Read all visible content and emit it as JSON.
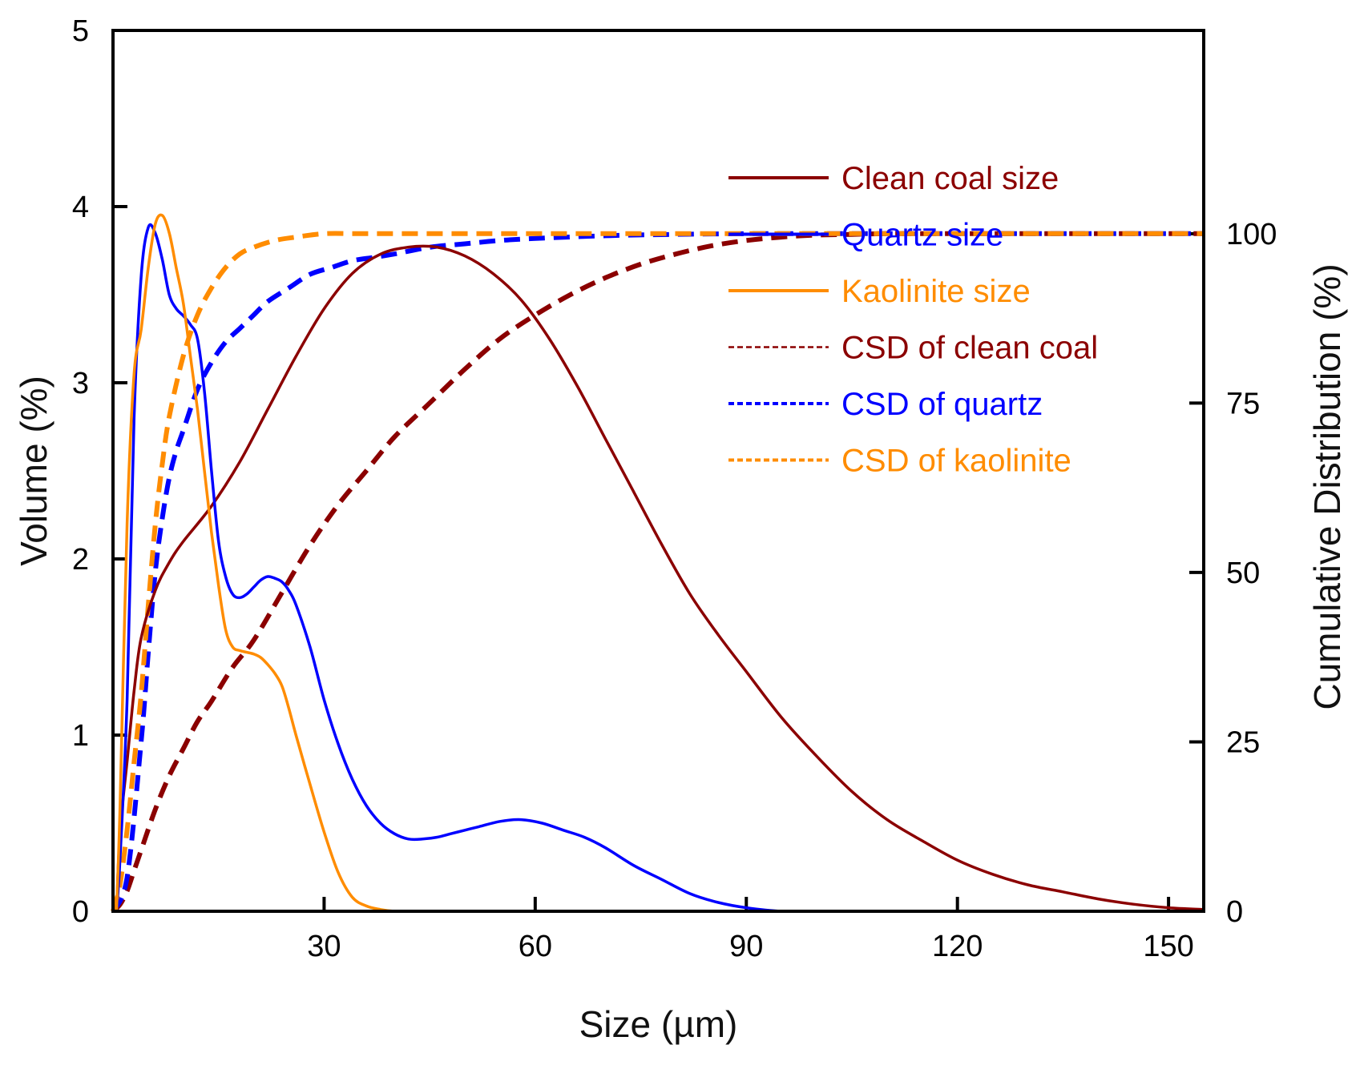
{
  "chart_data": {
    "type": "line",
    "title": "",
    "xlabel": "Size (µm)",
    "ylabel": "Volume (%)",
    "y2label": "Cumulative Distribution (%)",
    "xlim": [
      0,
      155
    ],
    "ylim": [
      0,
      5
    ],
    "y2lim": [
      0,
      130
    ],
    "grid": false,
    "legend_position": "upper-right",
    "xticks": [
      30,
      60,
      90,
      120,
      150
    ],
    "yticks": [
      0,
      1,
      2,
      3,
      4,
      5
    ],
    "y2ticks": [
      0,
      25,
      50,
      75,
      100
    ],
    "series": [
      {
        "name": "Clean coal size",
        "axis": "left",
        "style": "solid",
        "color": "#8B0000",
        "x": [
          0.5,
          1,
          2,
          3,
          4,
          6,
          8,
          10,
          14,
          18,
          22,
          26,
          30,
          34,
          38,
          42,
          46,
          50,
          54,
          58,
          62,
          66,
          70,
          74,
          78,
          82,
          86,
          90,
          95,
          100,
          105,
          110,
          115,
          120,
          125,
          130,
          135,
          140,
          145,
          150,
          155
        ],
        "values": [
          0,
          0.45,
          0.85,
          1.25,
          1.55,
          1.82,
          1.98,
          2.1,
          2.3,
          2.55,
          2.85,
          3.15,
          3.42,
          3.62,
          3.73,
          3.77,
          3.77,
          3.72,
          3.62,
          3.47,
          3.25,
          2.98,
          2.68,
          2.38,
          2.08,
          1.8,
          1.57,
          1.36,
          1.1,
          0.88,
          0.68,
          0.52,
          0.4,
          0.29,
          0.21,
          0.15,
          0.11,
          0.07,
          0.04,
          0.02,
          0.01
        ]
      },
      {
        "name": "Quartz size",
        "axis": "left",
        "style": "solid",
        "color": "#0000FF",
        "x": [
          0.5,
          1,
          2,
          3,
          4,
          5,
          6,
          7,
          8,
          9,
          10,
          11,
          12,
          13,
          14,
          15,
          16,
          17,
          18,
          19,
          20,
          21,
          22,
          23,
          24,
          25,
          26,
          28,
          30,
          32,
          34,
          36,
          38,
          40,
          42,
          44,
          46,
          48,
          50,
          52,
          55,
          58,
          61,
          64,
          67,
          70,
          74,
          78,
          82,
          86,
          90,
          95,
          100,
          105
        ],
        "values": [
          0,
          0.3,
          1.2,
          2.8,
          3.6,
          3.88,
          3.85,
          3.7,
          3.5,
          3.42,
          3.38,
          3.33,
          3.25,
          2.95,
          2.5,
          2.1,
          1.9,
          1.8,
          1.78,
          1.8,
          1.84,
          1.88,
          1.9,
          1.89,
          1.87,
          1.82,
          1.74,
          1.5,
          1.2,
          0.95,
          0.75,
          0.6,
          0.5,
          0.44,
          0.41,
          0.41,
          0.42,
          0.44,
          0.46,
          0.48,
          0.51,
          0.52,
          0.5,
          0.46,
          0.42,
          0.36,
          0.26,
          0.18,
          0.1,
          0.05,
          0.02,
          0.0,
          0.0,
          0.0
        ]
      },
      {
        "name": "Kaolinite size",
        "axis": "left",
        "style": "solid",
        "color": "#FF8C00",
        "x": [
          0.5,
          1,
          2,
          3,
          4,
          5,
          6,
          7,
          8,
          9,
          10,
          11,
          12,
          13,
          14,
          15,
          16,
          17,
          18,
          19,
          20,
          21,
          22,
          23,
          24,
          25,
          26,
          28,
          30,
          32,
          34,
          36,
          38,
          40,
          42,
          44
        ],
        "values": [
          0,
          0.6,
          2.2,
          3.05,
          3.3,
          3.65,
          3.9,
          3.95,
          3.85,
          3.65,
          3.45,
          3.15,
          2.85,
          2.5,
          2.15,
          1.85,
          1.6,
          1.5,
          1.48,
          1.47,
          1.46,
          1.44,
          1.4,
          1.35,
          1.28,
          1.15,
          1.0,
          0.72,
          0.45,
          0.22,
          0.08,
          0.03,
          0.01,
          0.0,
          0.0,
          0.0
        ]
      },
      {
        "name": "CSD of clean coal",
        "axis": "right",
        "style": "dashed",
        "color": "#8B0000",
        "x": [
          0,
          1,
          2,
          3,
          4,
          6,
          8,
          10,
          12,
          14,
          17,
          20,
          24,
          28,
          32,
          36,
          40,
          45,
          50,
          55,
          60,
          65,
          70,
          75,
          80,
          85,
          90,
          95,
          100,
          105,
          110,
          115,
          120,
          130,
          140,
          155
        ],
        "values": [
          0,
          1,
          3,
          6,
          9,
          15,
          20,
          24,
          28,
          31,
          36,
          40,
          47,
          54,
          60,
          65,
          70,
          75,
          80,
          84.5,
          88,
          91,
          93.5,
          95.5,
          97,
          98.2,
          99,
          99.5,
          99.8,
          99.9,
          100,
          100,
          100,
          100,
          100,
          100
        ]
      },
      {
        "name": "CSD of quartz",
        "axis": "right",
        "style": "dashed",
        "color": "#0000FF",
        "x": [
          0,
          2,
          4,
          5,
          6,
          7,
          8,
          9,
          10,
          12,
          14,
          16,
          18,
          20,
          22,
          25,
          28,
          31,
          34,
          37,
          40,
          45,
          50,
          55,
          60,
          70,
          80,
          90,
          100,
          120,
          140,
          155
        ],
        "values": [
          0,
          5,
          25,
          38,
          50,
          58,
          64,
          68,
          71,
          77,
          81,
          84,
          86,
          88,
          90,
          92,
          94,
          95,
          96,
          96.5,
          97,
          98,
          98.5,
          99,
          99.3,
          99.7,
          99.9,
          100,
          100,
          100,
          100,
          100
        ]
      },
      {
        "name": "CSD of kaolinite",
        "axis": "right",
        "style": "dashed",
        "color": "#FF8C00",
        "x": [
          0,
          1,
          2,
          3,
          4,
          5,
          6,
          7,
          8,
          10,
          12,
          14,
          16,
          18,
          20,
          23,
          26,
          30,
          35,
          40,
          50,
          60,
          80,
          100,
          130,
          155
        ],
        "values": [
          0,
          4,
          12,
          22,
          32,
          45,
          57,
          66,
          73,
          82,
          88,
          92,
          95,
          97,
          98,
          99,
          99.5,
          100,
          100,
          100,
          100,
          100,
          100,
          100,
          100,
          100
        ]
      }
    ]
  }
}
